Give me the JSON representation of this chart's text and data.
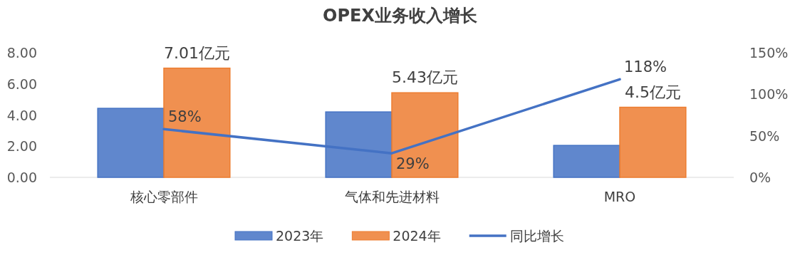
{
  "chart_data": {
    "type": "bar",
    "title": "OPEX业务收入增长",
    "categories": [
      "核心零部件",
      "气体和先进材料",
      "MRO"
    ],
    "series": [
      {
        "name": "2023年",
        "color": "#4472c4",
        "values": [
          4.43,
          4.2,
          2.05
        ]
      },
      {
        "name": "2024年",
        "color": "#ed7d31",
        "values": [
          7.01,
          5.43,
          4.5
        ],
        "value_labels": [
          "7.01亿元",
          "5.43亿元",
          "4.5亿元"
        ]
      },
      {
        "name": "同比增长",
        "type": "line",
        "axis": "y2",
        "color": "#4472c4",
        "values": [
          58,
          29,
          118
        ],
        "value_labels": [
          "58%",
          "29%",
          "118%"
        ]
      }
    ],
    "ylim": [
      0,
      8
    ],
    "yticks": [
      {
        "value": 0,
        "label": "0.00"
      },
      {
        "value": 2,
        "label": "2.00"
      },
      {
        "value": 4,
        "label": "4.00"
      },
      {
        "value": 6,
        "label": "6.00"
      },
      {
        "value": 8,
        "label": "8.00"
      }
    ],
    "y2lim": [
      0,
      150
    ],
    "y2ticks": [
      {
        "value": 0,
        "label": "0%"
      },
      {
        "value": 50,
        "label": "50%"
      },
      {
        "value": 100,
        "label": "100%"
      },
      {
        "value": 150,
        "label": "150%"
      }
    ],
    "legend": "bottom",
    "grid": false
  }
}
